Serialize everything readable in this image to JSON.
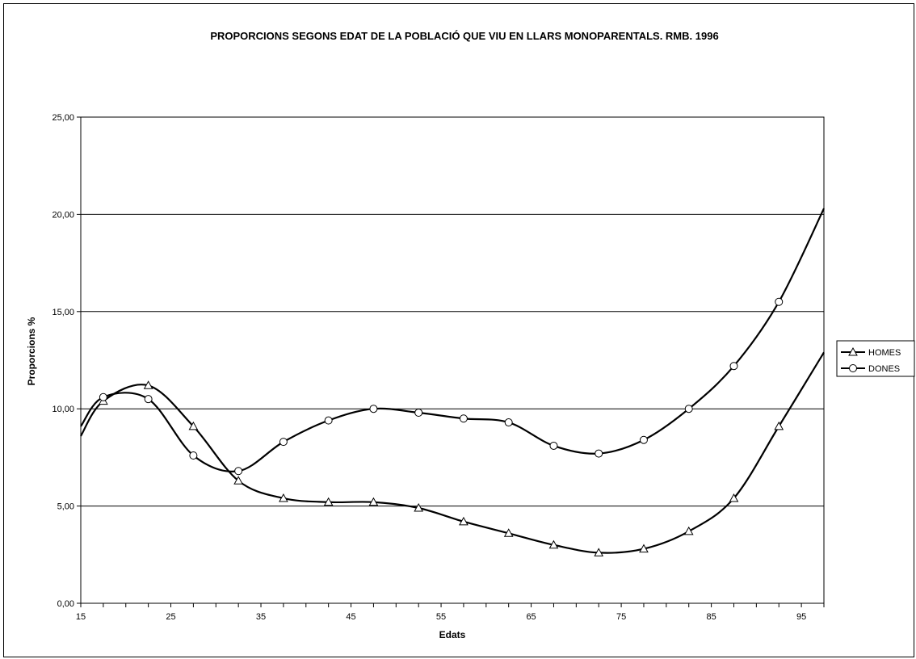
{
  "chart_data": {
    "type": "line",
    "title": "PROPORCIONS SEGONS EDAT DE LA POBLACIÓ QUE VIU EN LLARS MONOPARENTALS. RMB. 1996",
    "xlabel": "Edats",
    "ylabel": "Proporcions %",
    "xlim": [
      15,
      97.5
    ],
    "ylim": [
      0,
      25
    ],
    "x_ticks": [
      "15",
      "25",
      "35",
      "45",
      "55",
      "65",
      "75",
      "85",
      "95"
    ],
    "y_ticks": [
      "0,00",
      "5,00",
      "10,00",
      "15,00",
      "20,00",
      "25,00"
    ],
    "grid": "horizontal",
    "legend_position": "right",
    "x": [
      17.5,
      22.5,
      27.5,
      32.5,
      37.5,
      42.5,
      47.5,
      52.5,
      57.5,
      62.5,
      67.5,
      72.5,
      77.5,
      82.5,
      87.5,
      92.5
    ],
    "series": [
      {
        "name": "HOMES",
        "marker": "triangle",
        "values": [
          10.4,
          11.2,
          9.1,
          6.3,
          5.4,
          5.2,
          5.2,
          4.9,
          4.2,
          3.6,
          3.0,
          2.6,
          2.8,
          3.7,
          5.4,
          9.1
        ],
        "line_start": 8.6,
        "line_end": 12.9
      },
      {
        "name": "DONES",
        "marker": "circle",
        "values": [
          10.6,
          10.5,
          7.6,
          6.8,
          8.3,
          9.4,
          10.0,
          9.8,
          9.5,
          9.3,
          8.1,
          7.7,
          8.4,
          10.0,
          12.2,
          15.5
        ],
        "line_start": 9.1,
        "line_end": 20.3
      }
    ]
  }
}
